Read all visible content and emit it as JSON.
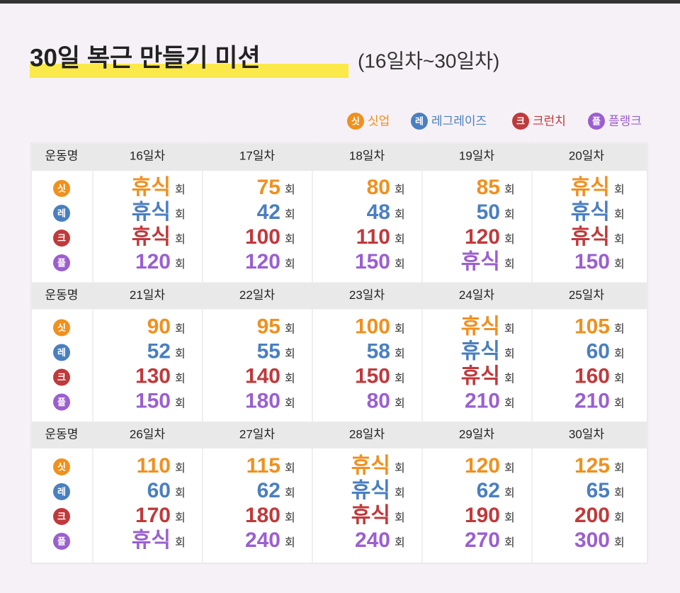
{
  "title": "30일 복근 만들기 미션",
  "subtitle": "(16일차~30일차)",
  "unit": "회",
  "header_label": "운동명",
  "exercises": [
    {
      "icon": "싯",
      "name": "싯업",
      "color": "#f0901e"
    },
    {
      "icon": "레",
      "name": "레그레이즈",
      "color": "#4a7fc0"
    },
    {
      "icon": "크",
      "name": "크런치",
      "color": "#c0393b"
    },
    {
      "icon": "플",
      "name": "플랭크",
      "color": "#9b5fd0"
    }
  ],
  "blocks": [
    {
      "days": [
        "16일차",
        "17일차",
        "18일차",
        "19일차",
        "20일차"
      ],
      "rows": [
        [
          "휴식",
          75,
          80,
          85,
          "휴식"
        ],
        [
          "휴식",
          42,
          48,
          50,
          "휴식"
        ],
        [
          "휴식",
          100,
          110,
          120,
          "휴식"
        ],
        [
          120,
          120,
          150,
          "휴식",
          150
        ]
      ]
    },
    {
      "days": [
        "21일차",
        "22일차",
        "23일차",
        "24일차",
        "25일차"
      ],
      "rows": [
        [
          90,
          95,
          100,
          "휴식",
          105
        ],
        [
          52,
          55,
          58,
          "휴식",
          60
        ],
        [
          130,
          140,
          150,
          "휴식",
          160
        ],
        [
          150,
          180,
          80,
          210,
          210
        ]
      ]
    },
    {
      "days": [
        "26일차",
        "27일차",
        "28일차",
        "29일차",
        "30일차"
      ],
      "rows": [
        [
          110,
          115,
          "휴식",
          120,
          125
        ],
        [
          60,
          62,
          "휴식",
          62,
          65
        ],
        [
          170,
          180,
          "휴식",
          190,
          200
        ],
        [
          "휴식",
          240,
          240,
          270,
          300
        ]
      ]
    }
  ]
}
